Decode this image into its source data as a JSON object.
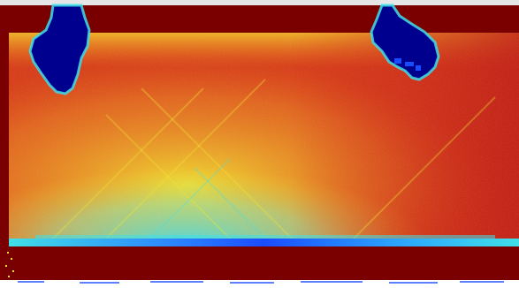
{
  "image": {
    "kind": "false-color thermal/intensity map",
    "colormap": "jet",
    "background_color": "#7a0000",
    "colors": {
      "dark_red": "#7a0000",
      "red": "#d21e0f",
      "orange": "#f07814",
      "yellow": "#f5e628",
      "cyan": "#40e0e8",
      "blue": "#1a4cff",
      "navy": "#00008f"
    }
  }
}
